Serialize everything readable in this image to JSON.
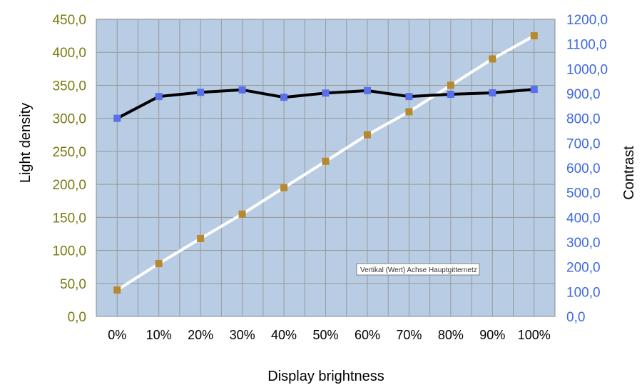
{
  "chart_data": {
    "type": "line",
    "categories": [
      "0%",
      "10%",
      "20%",
      "30%",
      "40%",
      "50%",
      "60%",
      "70%",
      "80%",
      "90%",
      "100%"
    ],
    "xlabel": "Display brightness",
    "ylabel_left": "Light density",
    "ylabel_right": "Contrast",
    "y_left_lim": [
      0,
      450
    ],
    "y_left_step": 50,
    "y_right_lim": [
      0,
      1200
    ],
    "y_right_step": 100,
    "y_left_ticks": [
      "0,0",
      "50,0",
      "100,0",
      "150,0",
      "200,0",
      "250,0",
      "300,0",
      "350,0",
      "400,0",
      "450,0"
    ],
    "y_right_ticks": [
      "0,0",
      "100,0",
      "200,0",
      "300,0",
      "400,0",
      "500,0",
      "600,0",
      "700,0",
      "800,0",
      "900,0",
      "1000,0",
      "1100,0",
      "1200,0"
    ],
    "grid": true,
    "series": [
      {
        "axis": "left",
        "line_color": "#ffffff",
        "marker_color": "#b8882c",
        "values": [
          40,
          80,
          118,
          155,
          195,
          235,
          275,
          310,
          350,
          390,
          425
        ]
      },
      {
        "axis": "right",
        "line_color": "#000000",
        "marker_color": "#5870e8",
        "values": [
          800,
          888,
          905,
          915,
          885,
          902,
          912,
          888,
          897,
          903,
          917
        ]
      }
    ],
    "tooltip": "Vertikal (Wert) Achse Hauptgitternetz"
  },
  "colors": {
    "plot_background": "#b8cce4",
    "grid": "#999999",
    "left_axis_text": "#7a7a10",
    "right_axis_text": "#3d68e0"
  }
}
